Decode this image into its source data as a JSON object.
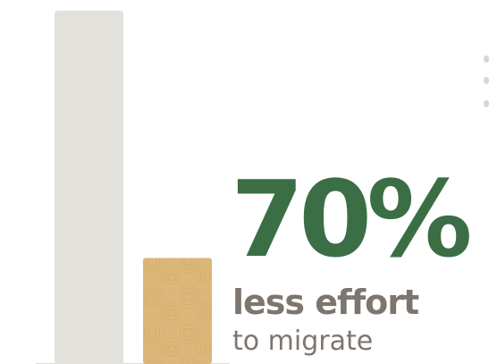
{
  "chart_data": {
    "type": "bar",
    "categories": [
      "",
      ""
    ],
    "values": [
      100,
      30
    ],
    "ylim": [
      0,
      100
    ],
    "grid": false,
    "bar_colors": [
      "#e3e1dc",
      "#dcb77a"
    ]
  },
  "stat": {
    "value": "70%",
    "label_main": "less effort",
    "label_sub": "to migrate",
    "value_color": "#3b6e45",
    "label_color": "#7d766f"
  }
}
